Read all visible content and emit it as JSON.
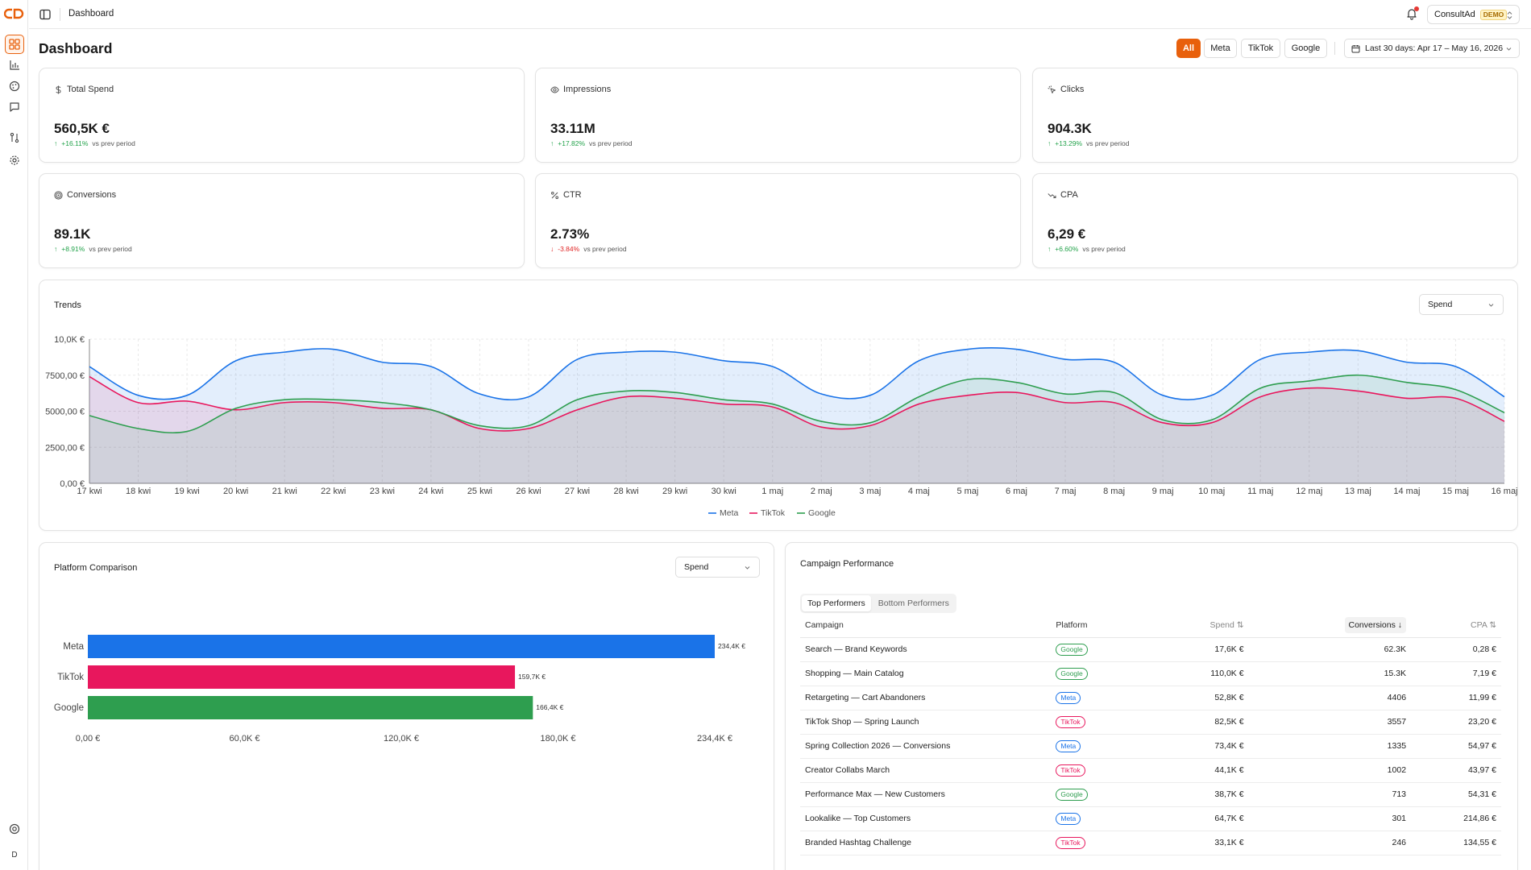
{
  "header": {
    "breadcrumb": "Dashboard",
    "account_name": "ConsultAd",
    "account_badge": "DEMO"
  },
  "page": {
    "title": "Dashboard"
  },
  "platform_filters": [
    "All",
    "Meta",
    "TikTok",
    "Google"
  ],
  "active_platform_filter": "All",
  "date_range": "Last 30 days: Apr 17 – May 16, 2026",
  "colors": {
    "accent": "#e8600c",
    "meta": "#1a73e8",
    "tiktok": "#e8175d",
    "google": "#2e9e4f",
    "positive": "#22a24a",
    "negative": "#e02424"
  },
  "kpis": [
    {
      "label": "Total Spend",
      "icon": "dollar-icon",
      "value": "560,5K €",
      "change": "+16.11%",
      "direction": "up",
      "suffix": "vs prev period"
    },
    {
      "label": "Impressions",
      "icon": "eye-icon",
      "value": "33.11M",
      "change": "+17.82%",
      "direction": "up",
      "suffix": "vs prev period"
    },
    {
      "label": "Clicks",
      "icon": "cursor-click-icon",
      "value": "904.3K",
      "change": "+13.29%",
      "direction": "up",
      "suffix": "vs prev period"
    },
    {
      "label": "Conversions",
      "icon": "target-icon",
      "value": "89.1K",
      "change": "+8.91%",
      "direction": "up",
      "suffix": "vs prev period"
    },
    {
      "label": "CTR",
      "icon": "percent-icon",
      "value": "2.73%",
      "change": "-3.84%",
      "direction": "down",
      "suffix": "vs prev period"
    },
    {
      "label": "CPA",
      "icon": "trending-down-icon",
      "value": "6,29 €",
      "change": "+6.60%",
      "direction": "up",
      "suffix": "vs prev period"
    }
  ],
  "trends": {
    "title": "Trends",
    "metric_select": "Spend"
  },
  "platform_comparison": {
    "title": "Platform Comparison",
    "metric_select": "Spend"
  },
  "campaign_performance": {
    "title": "Campaign Performance",
    "tabs": [
      "Top Performers",
      "Bottom Performers"
    ],
    "active_tab": "Top Performers",
    "columns": {
      "campaign": "Campaign",
      "platform": "Platform",
      "spend": "Spend ⇅",
      "conversions": "Conversions ↓",
      "cpa": "CPA ⇅"
    },
    "rows": [
      {
        "campaign": "Search — Brand Keywords",
        "platform": "Google",
        "spend": "17,6K €",
        "conversions": "62.3K",
        "cpa": "0,28 €"
      },
      {
        "campaign": "Shopping — Main Catalog",
        "platform": "Google",
        "spend": "110,0K €",
        "conversions": "15.3K",
        "cpa": "7,19 €"
      },
      {
        "campaign": "Retargeting — Cart Abandoners",
        "platform": "Meta",
        "spend": "52,8K €",
        "conversions": "4406",
        "cpa": "11,99 €"
      },
      {
        "campaign": "TikTok Shop — Spring Launch",
        "platform": "TikTok",
        "spend": "82,5K €",
        "conversions": "3557",
        "cpa": "23,20 €"
      },
      {
        "campaign": "Spring Collection 2026 — Conversions",
        "platform": "Meta",
        "spend": "73,4K €",
        "conversions": "1335",
        "cpa": "54,97 €"
      },
      {
        "campaign": "Creator Collabs March",
        "platform": "TikTok",
        "spend": "44,1K €",
        "conversions": "1002",
        "cpa": "43,97 €"
      },
      {
        "campaign": "Performance Max — New Customers",
        "platform": "Google",
        "spend": "38,7K €",
        "conversions": "713",
        "cpa": "54,31 €"
      },
      {
        "campaign": "Lookalike — Top Customers",
        "platform": "Meta",
        "spend": "64,7K €",
        "conversions": "301",
        "cpa": "214,86 €"
      },
      {
        "campaign": "Branded Hashtag Challenge",
        "platform": "TikTok",
        "spend": "33,1K €",
        "conversions": "246",
        "cpa": "134,55 €"
      }
    ]
  },
  "chart_data": [
    {
      "type": "area",
      "x": [
        "17 kwi",
        "18 kwi",
        "19 kwi",
        "20 kwi",
        "21 kwi",
        "22 kwi",
        "23 kwi",
        "24 kwi",
        "25 kwi",
        "26 kwi",
        "27 kwi",
        "28 kwi",
        "29 kwi",
        "30 kwi",
        "1 maj",
        "2 maj",
        "3 maj",
        "4 maj",
        "5 maj",
        "6 maj",
        "7 maj",
        "8 maj",
        "9 maj",
        "10 maj",
        "11 maj",
        "12 maj",
        "13 maj",
        "14 maj",
        "15 maj",
        "16 maj"
      ],
      "ylim": [
        0,
        10000
      ],
      "yticks": [
        "0,00 €",
        "2500,00 €",
        "5000,00 €",
        "7500,00 €",
        "10,0K €"
      ],
      "series": [
        {
          "name": "Meta",
          "values": [
            8100,
            6100,
            6100,
            8500,
            9100,
            9300,
            8400,
            8100,
            6200,
            6000,
            8600,
            9100,
            9100,
            8500,
            8100,
            6200,
            6100,
            8500,
            9300,
            9300,
            8600,
            8400,
            6100,
            6100,
            8600,
            9100,
            9200,
            8400,
            8100,
            6000
          ]
        },
        {
          "name": "TikTok",
          "values": [
            7400,
            5600,
            5700,
            5100,
            5600,
            5600,
            5200,
            5100,
            3800,
            3800,
            5100,
            6000,
            5900,
            5500,
            5300,
            3900,
            4000,
            5500,
            6100,
            6300,
            5600,
            5600,
            4200,
            4200,
            6000,
            6600,
            6400,
            5900,
            5900,
            4300
          ]
        },
        {
          "name": "Google",
          "values": [
            4700,
            3800,
            3600,
            5200,
            5800,
            5800,
            5600,
            5100,
            4000,
            4000,
            5800,
            6400,
            6300,
            5800,
            5500,
            4300,
            4200,
            6000,
            7200,
            7000,
            6200,
            6300,
            4400,
            4400,
            6600,
            7100,
            7500,
            7000,
            6500,
            4900
          ]
        }
      ],
      "legend": [
        "Meta",
        "TikTok",
        "Google"
      ],
      "legend_position": "bottom",
      "grid": true
    },
    {
      "type": "bar",
      "orientation": "horizontal",
      "categories": [
        "Meta",
        "TikTok",
        "Google"
      ],
      "values": [
        234400,
        159700,
        166400
      ],
      "value_labels": [
        "234,4K €",
        "159,7K €",
        "166,4K €"
      ],
      "xlim": [
        0,
        234400
      ],
      "xticks": [
        "0,00 €",
        "60,0K €",
        "120,0K €",
        "180,0K €",
        "234,4K €"
      ],
      "grid": false
    }
  ]
}
